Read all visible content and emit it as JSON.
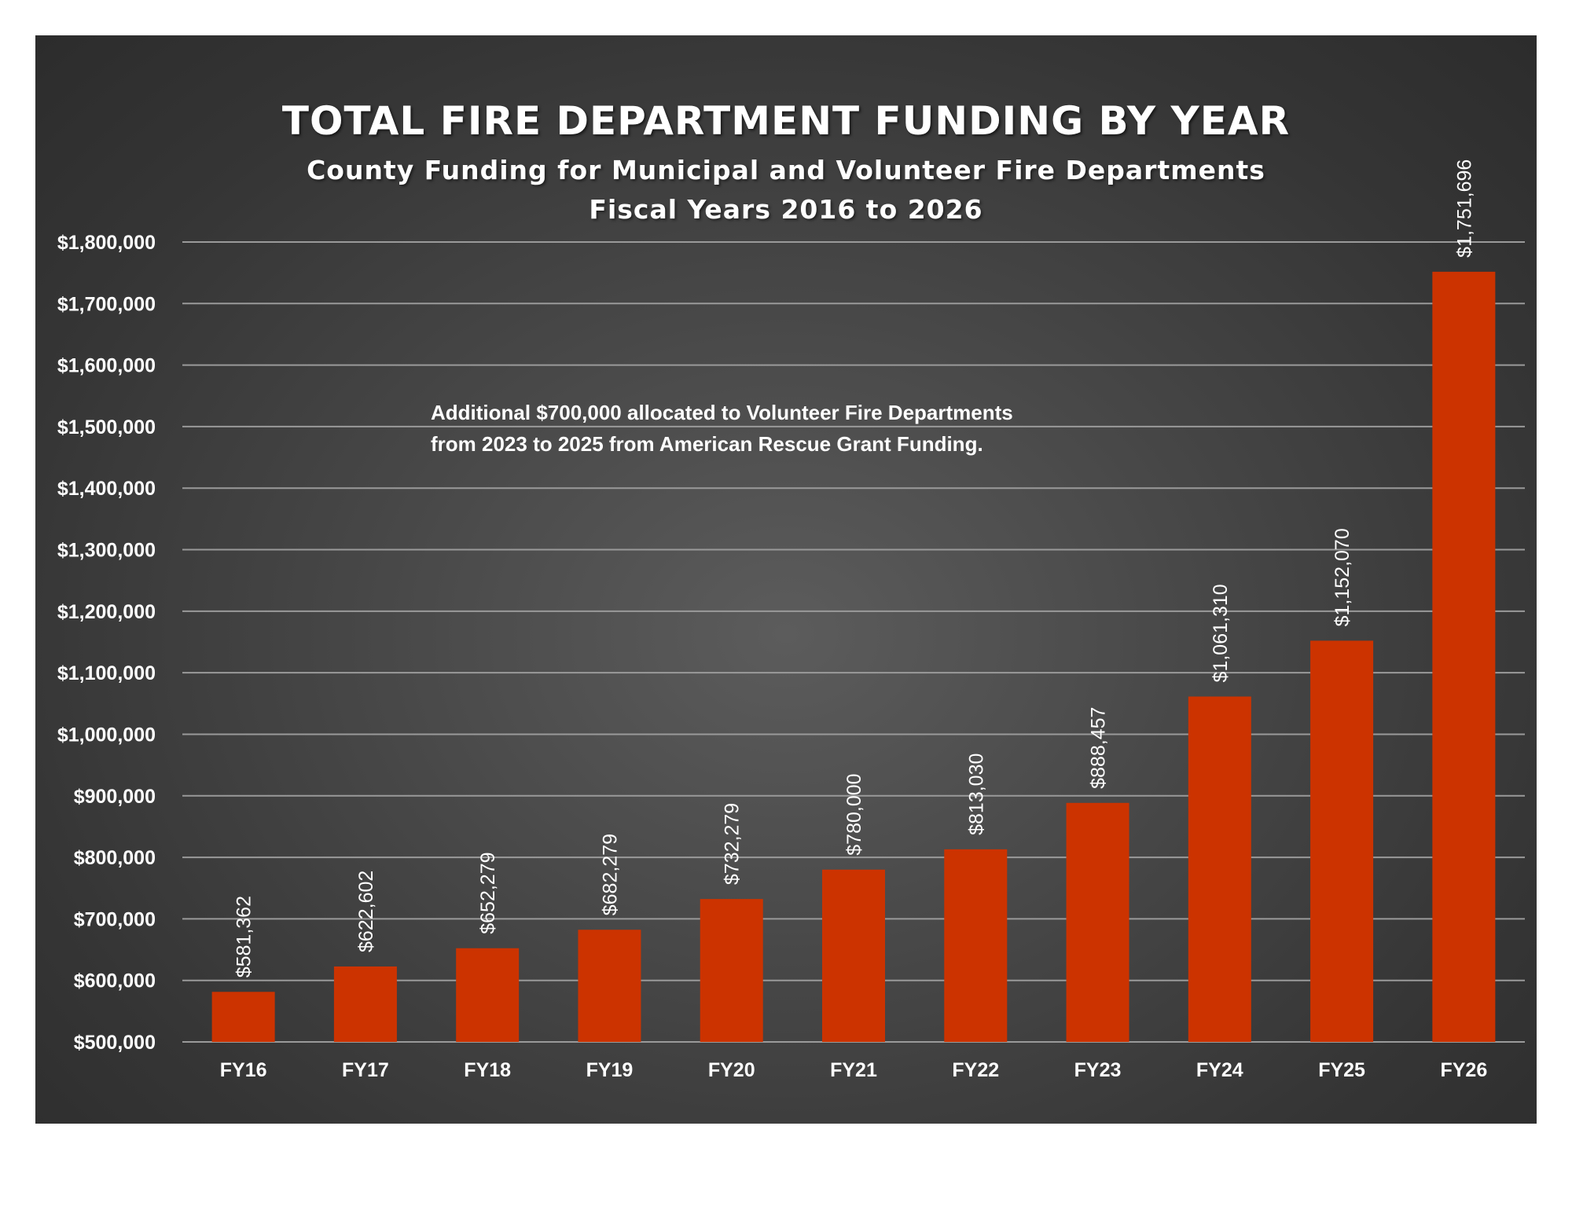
{
  "chart_data": {
    "type": "bar",
    "title": "TOTAL FIRE DEPARTMENT FUNDING BY YEAR",
    "subtitle": [
      "County Funding for Municipal and Volunteer Fire Departments",
      "Fiscal Years 2016 to 2026"
    ],
    "categories": [
      "FY16",
      "FY17",
      "FY18",
      "FY19",
      "FY20",
      "FY21",
      "FY22",
      "FY23",
      "FY24",
      "FY25",
      "FY26"
    ],
    "values": [
      581362,
      622602,
      652279,
      682279,
      732279,
      780000,
      813030,
      888457,
      1061310,
      1152070,
      1751696
    ],
    "data_labels": [
      "$581,362",
      "$622,602",
      "$652,279",
      "$682,279",
      "$732,279",
      "$780,000",
      "$813,030",
      "$888,457",
      "$1,061,310",
      "$1,152,070",
      "$1,751,696"
    ],
    "ylim": [
      500000,
      1800000
    ],
    "yticks": [
      500000,
      600000,
      700000,
      800000,
      900000,
      1000000,
      1100000,
      1200000,
      1300000,
      1400000,
      1500000,
      1600000,
      1700000,
      1800000
    ],
    "ytick_labels": [
      "$500,000",
      "$600,000",
      "$700,000",
      "$800,000",
      "$900,000",
      "$1,000,000",
      "$1,100,000",
      "$1,200,000",
      "$1,300,000",
      "$1,400,000",
      "$1,500,000",
      "$1,600,000",
      "$1,700,000",
      "$1,800,000"
    ],
    "xlabel": "",
    "ylabel": "",
    "grid": true,
    "legend": false,
    "bar_color": "#cc3300",
    "annotations": [
      "Additional $700,000 allocated to Volunteer Fire Departments",
      "from 2023 to 2025 from American Rescue Grant Funding."
    ]
  },
  "colors": {
    "background": "#3d3d3d",
    "bar": "#cc3300",
    "gridline": "#9a9a9a",
    "text": "#ffffff"
  }
}
